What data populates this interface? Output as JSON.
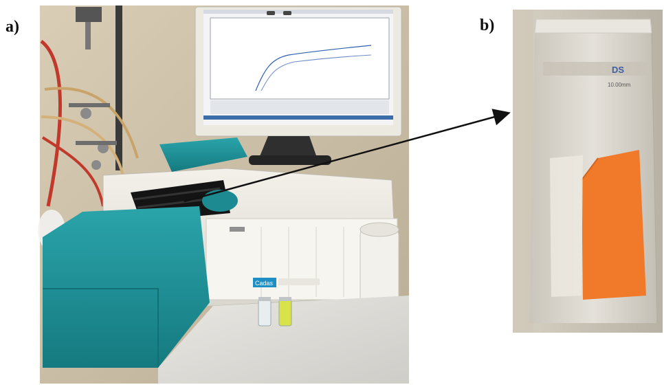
{
  "figure": {
    "panel_a_label": "a)",
    "panel_b_label": "b)"
  },
  "photo_a": {
    "instrument_badge": "Cadas"
  },
  "photo_b": {
    "cuvette_brand": "DS",
    "cuvette_path": "10.00mm"
  },
  "colors": {
    "instrument_teal": "#1e8e95",
    "film_orange": "#f07a2a",
    "arrow": "#111111"
  }
}
